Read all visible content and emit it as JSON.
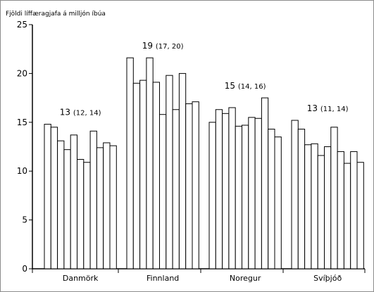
{
  "chart_data": {
    "type": "bar",
    "title": "",
    "ylabel": "Fjöldi líffæragjafa á milljón íbúa",
    "xlabel": "",
    "ylim": [
      0,
      25
    ],
    "yticks": [
      0,
      5,
      10,
      15,
      20,
      25
    ],
    "grid": false,
    "legend": "none",
    "groups": [
      {
        "category": "Danmörk",
        "values": [
          14.8,
          14.5,
          13.1,
          12.2,
          13.7,
          11.2,
          10.9,
          14.1,
          12.4,
          12.9,
          12.6
        ],
        "annotation": "13",
        "annotation_ci": "(12, 14)"
      },
      {
        "category": "Finnland",
        "values": [
          21.6,
          19.0,
          19.3,
          21.6,
          19.1,
          15.8,
          19.8,
          16.3,
          20.0,
          16.9,
          17.1
        ],
        "annotation": "19",
        "annotation_ci": "(17, 20)"
      },
      {
        "category": "Noregur",
        "values": [
          15.0,
          16.3,
          15.9,
          16.5,
          14.6,
          14.7,
          15.5,
          15.4,
          17.5,
          14.3,
          13.5
        ],
        "annotation": "15",
        "annotation_ci": "(14, 16)"
      },
      {
        "category": "Svíþjóð",
        "values": [
          15.2,
          14.3,
          12.7,
          12.8,
          11.6,
          12.5,
          14.5,
          12.0,
          10.8,
          12.0,
          10.9
        ],
        "annotation": "13",
        "annotation_ci": "(11, 14)"
      }
    ],
    "colors": {
      "bar_fill": "#ffffff",
      "bar_stroke": "#000000"
    }
  }
}
